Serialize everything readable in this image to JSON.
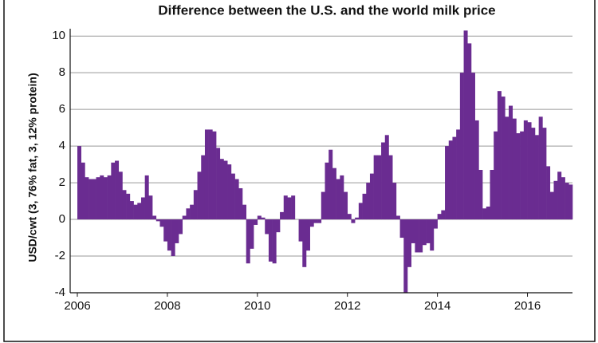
{
  "chart_data": {
    "type": "bar",
    "title": "Difference between the U.S. and the world milk price",
    "y_label": "USD/cwt (3, 76% fat, 3, 12% protein)",
    "color": "#6a2c91",
    "categories": [
      "2006",
      null,
      null,
      null,
      null,
      null,
      null,
      null,
      null,
      null,
      null,
      null,
      null,
      null,
      null,
      null,
      null,
      null,
      null,
      null,
      null,
      null,
      null,
      null,
      "2008",
      null,
      null,
      null,
      null,
      null,
      null,
      null,
      null,
      null,
      null,
      null,
      null,
      null,
      null,
      null,
      null,
      null,
      null,
      null,
      null,
      null,
      null,
      null,
      "2010",
      null,
      null,
      null,
      null,
      null,
      null,
      null,
      null,
      null,
      null,
      null,
      null,
      null,
      null,
      null,
      null,
      null,
      null,
      null,
      null,
      null,
      null,
      null,
      "2012",
      null,
      null,
      null,
      null,
      null,
      null,
      null,
      null,
      null,
      null,
      null,
      null,
      null,
      null,
      null,
      null,
      null,
      null,
      null,
      null,
      null,
      null,
      null,
      "2014",
      null,
      null,
      null,
      null,
      null,
      null,
      null,
      null,
      null,
      null,
      null,
      null,
      null,
      null,
      null,
      null,
      null,
      null,
      null,
      null,
      null,
      null,
      null,
      "2016",
      null,
      null,
      null,
      null,
      null,
      null,
      null,
      null,
      null,
      null,
      null
    ],
    "values": [
      4.0,
      3.1,
      2.3,
      2.2,
      2.2,
      2.3,
      2.4,
      2.3,
      2.4,
      3.1,
      3.2,
      2.6,
      1.6,
      1.4,
      1.0,
      0.8,
      0.9,
      1.2,
      2.4,
      1.3,
      0.2,
      -0.1,
      -0.4,
      -1.2,
      -1.7,
      -2.0,
      -1.3,
      -0.8,
      0.2,
      0.6,
      0.8,
      1.6,
      2.6,
      3.5,
      4.9,
      4.9,
      4.8,
      3.9,
      3.3,
      3.2,
      3.0,
      2.5,
      2.2,
      1.7,
      0.8,
      -2.4,
      -1.6,
      -0.3,
      0.2,
      0.1,
      -0.8,
      -2.3,
      -2.4,
      -0.7,
      0.4,
      1.3,
      1.2,
      1.3,
      0.0,
      -1.2,
      -2.6,
      -1.7,
      -0.4,
      -0.2,
      -0.2,
      1.5,
      3.1,
      3.8,
      2.8,
      2.2,
      2.4,
      1.5,
      0.3,
      -0.2,
      0.1,
      0.9,
      1.4,
      2.0,
      2.5,
      3.5,
      3.5,
      4.2,
      4.6,
      3.5,
      2.0,
      0.2,
      -1.0,
      -4.0,
      -2.6,
      -1.3,
      -1.8,
      -1.8,
      -1.4,
      -1.3,
      -1.7,
      -0.5,
      0.3,
      0.5,
      4.0,
      4.3,
      4.5,
      4.9,
      8.0,
      10.3,
      9.6,
      8.0,
      5.4,
      2.7,
      0.6,
      0.7,
      2.7,
      4.8,
      7.0,
      6.7,
      5.6,
      6.2,
      5.5,
      4.7,
      4.8,
      5.4,
      5.3,
      5.0,
      4.6,
      5.6,
      5.0,
      2.9,
      1.5,
      2.1,
      2.6,
      2.3,
      2.0,
      1.9
    ],
    "ylim": [
      -4,
      10.4
    ],
    "yticks": [
      -4,
      -2,
      0,
      2,
      4,
      6,
      8,
      10
    ],
    "grid": true
  }
}
